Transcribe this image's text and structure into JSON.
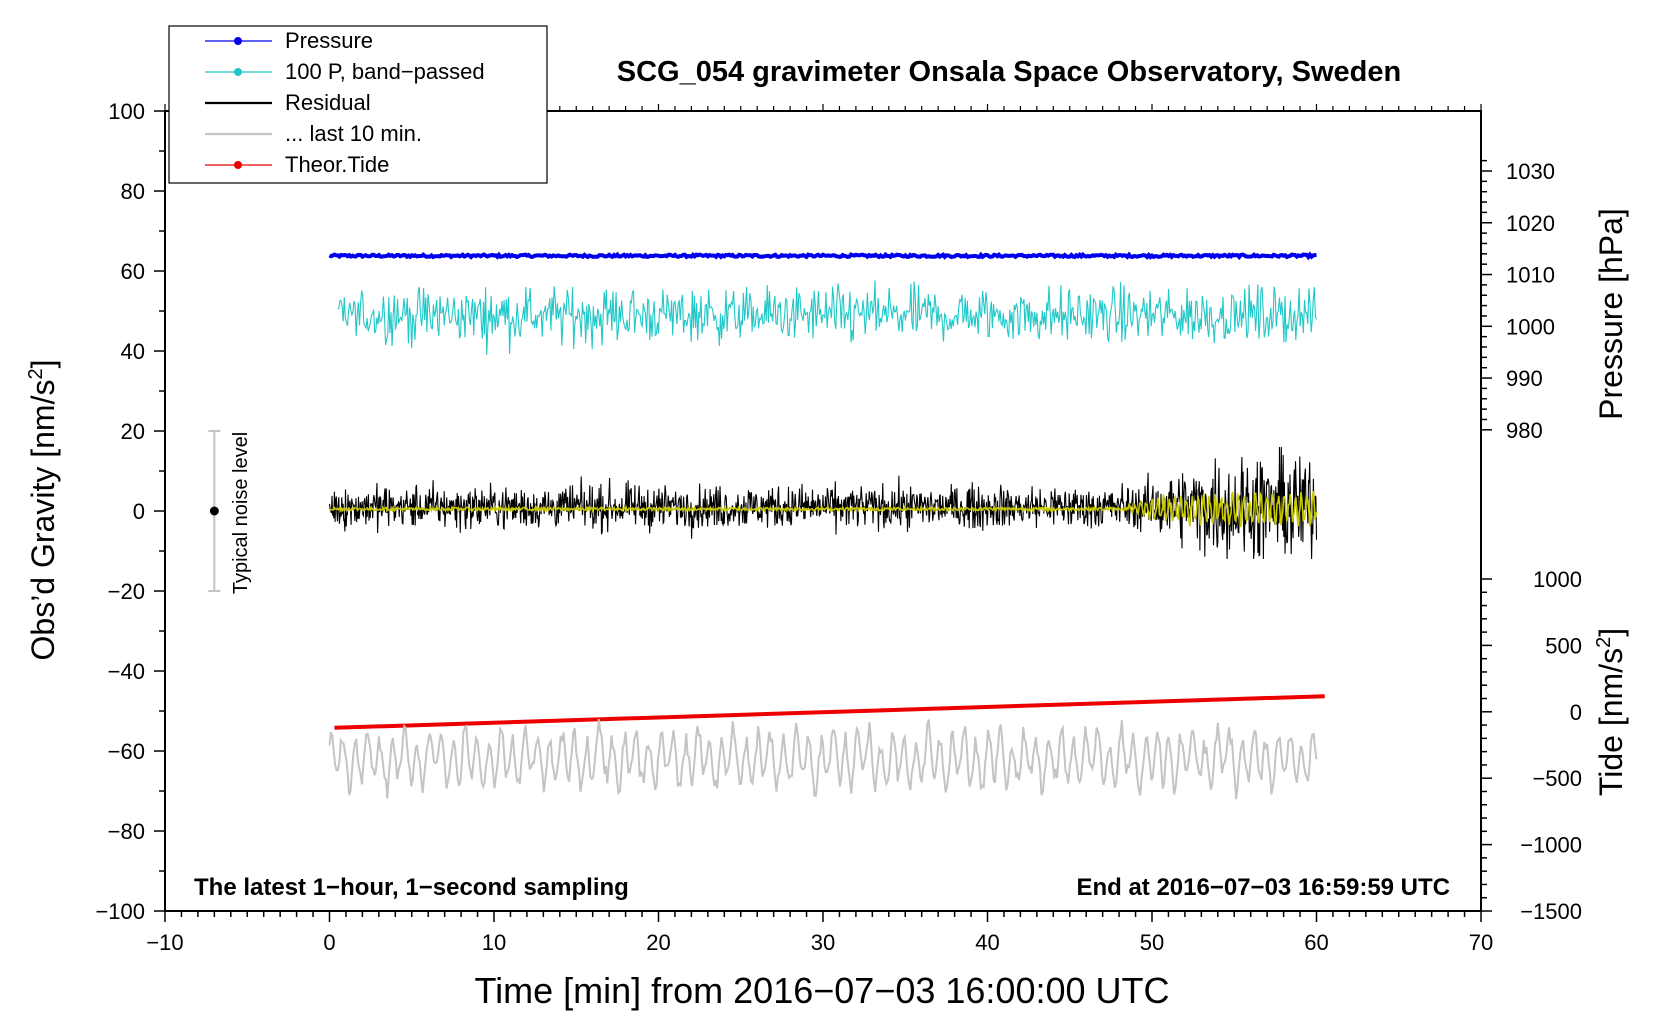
{
  "chart_data": {
    "type": "line",
    "title": "SCG_054 gravimeter Onsala Space Observatory, Sweden",
    "xlabel": "Time [min] from 2016−07−03 16:00:00 UTC",
    "ylabel_main": "Obs’d Gravity [nm/s",
    "ylabel_main_sup": "2",
    "ylabel_main_end": "]",
    "ylabel_pressure": "Pressure [hPa]",
    "ylabel_tide": "Tide [nm/s",
    "ylabel_tide_sup": "2",
    "ylabel_tide_end": "]",
    "xlim": [
      -10,
      70
    ],
    "ylim": [
      -100,
      100
    ],
    "pressure_axis": {
      "map_data": [
        [
          979,
          19
        ],
        [
          1030,
          85
        ]
      ]
    },
    "tide_axis": {
      "map_data": [
        [
          -1500,
          -100
        ],
        [
          1000,
          -17
        ]
      ]
    },
    "x_ticks": [
      "−10",
      "0",
      "10",
      "20",
      "30",
      "40",
      "50",
      "60",
      "70"
    ],
    "x_tick_values": [
      -10,
      0,
      10,
      20,
      30,
      40,
      50,
      60,
      70
    ],
    "y_ticks": [
      "100",
      "80",
      "60",
      "40",
      "20",
      "0",
      "−20",
      "−40",
      "−60",
      "−80",
      "−100"
    ],
    "y_tick_values": [
      100,
      80,
      60,
      40,
      20,
      0,
      -20,
      -40,
      -60,
      -80,
      -100
    ],
    "pressure_ticks": [
      "1030",
      "1020",
      "1010",
      "1000",
      "990",
      "980"
    ],
    "pressure_tick_values": [
      1030,
      1020,
      1010,
      1000,
      990,
      980
    ],
    "tide_ticks": [
      "1000",
      "500",
      "0",
      "−500",
      "−1000",
      "−1500"
    ],
    "tide_tick_values": [
      1000,
      500,
      0,
      -500,
      -1000,
      -1500
    ],
    "legend": [
      {
        "label": "Pressure",
        "color": "#0000ee",
        "marker": true
      },
      {
        "label": "100 P, band−passed",
        "color": "#22c8c8",
        "marker": true
      },
      {
        "label": "Residual",
        "color": "#000000",
        "marker": false
      },
      {
        "label": "... last 10 min.",
        "color": "#c4c4c4",
        "marker": false
      },
      {
        "label": "Theor.Tide",
        "color": "#ee0000",
        "marker": true
      }
    ],
    "noise_label": "Typical noise level",
    "noise_bar": {
      "x": -7,
      "center": 0,
      "low": -20,
      "high": 20
    },
    "annotation_left": "The latest 1−hour, 1−second sampling",
    "annotation_right": "End at 2016−07−03 16:59:59 UTC",
    "series": [
      {
        "name": "Pressure",
        "color": "#0000ee",
        "x_range": [
          0,
          60
        ],
        "level_nm": 63.8,
        "jitter_nm": 0.3
      },
      {
        "name": "100 P, band−passed",
        "color": "#22c8c8",
        "x_range": [
          0.5,
          60
        ],
        "center_nm": 49,
        "amplitude_nm": 4.5,
        "min_nm": 38,
        "max_nm": 59
      },
      {
        "name": "Residual",
        "color": "#000000",
        "x_range": [
          0,
          60
        ],
        "center_nm": 1,
        "amplitude_nm": 3.5,
        "late_amplitude_nm": 9,
        "min_nm": -12,
        "max_nm": 16
      },
      {
        "name": "Residual (smoothed)",
        "color": "#c8c800",
        "x_range": [
          0,
          60
        ],
        "center_nm": 0.5,
        "amplitude_nm": 1,
        "late_amplitude_nm": 4
      },
      {
        "name": "Theor.Tide",
        "color": "#ee0000",
        "x": [
          0.3,
          60.5
        ],
        "y_nm": [
          -54.2,
          -46.3
        ]
      },
      {
        "name": "... last 10 min.",
        "color": "#c4c4c4",
        "x_range": [
          0,
          60
        ],
        "center_nm": -62,
        "amplitude_nm": 6,
        "min_nm": -73,
        "max_nm": -45
      }
    ]
  }
}
